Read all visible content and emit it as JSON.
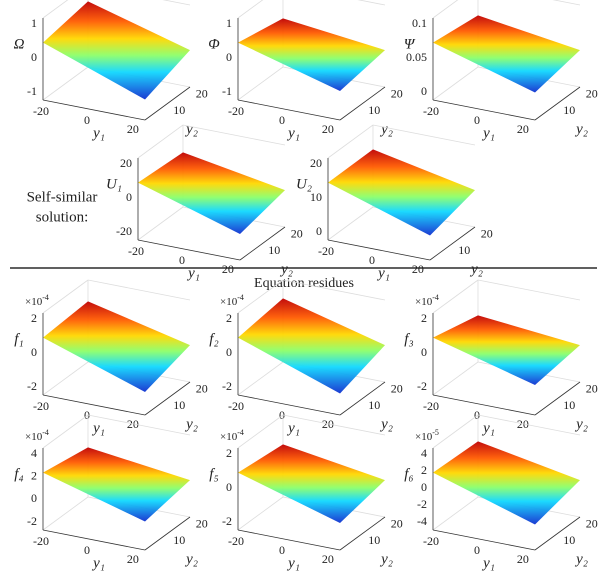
{
  "panels": [
    {
      "zlabel": "Ω",
      "zticks": [
        -1,
        0,
        1
      ],
      "y1ticks": [
        -20,
        0,
        20
      ],
      "y2ticks": [
        10,
        20
      ],
      "y1label": "y₁",
      "y2label": "y₂"
    },
    {
      "zlabel": "Φ",
      "zticks": [
        -1,
        0,
        1
      ],
      "y1ticks": [
        -20,
        0,
        20
      ],
      "y2ticks": [
        10,
        20
      ],
      "y1label": "y₁",
      "y2label": "y₂"
    },
    {
      "zlabel": "Ψ",
      "zticks": [
        0,
        0.05,
        0.1
      ],
      "y1ticks": [
        -20,
        0,
        20
      ],
      "y2ticks": [
        10,
        20
      ],
      "y1label": "y₁",
      "y2label": "y₂"
    },
    {
      "zlabel": "U₁",
      "zticks": [
        -20,
        0,
        20
      ],
      "y1ticks": [
        -20,
        0,
        20
      ],
      "y2ticks": [
        10,
        20
      ],
      "y1label": "y₁",
      "y2label": "y₂"
    },
    {
      "zlabel": "U₂",
      "zticks": [
        0,
        10,
        20
      ],
      "y1ticks": [
        -20,
        0,
        20
      ],
      "y2ticks": [
        10,
        20
      ],
      "y1label": "y₁",
      "y2label": "y₂"
    },
    {
      "zlabel": "f₁",
      "exponent": {
        "base": "×10",
        "power": "-4"
      },
      "zticks": [
        -2,
        0,
        2
      ],
      "y1ticks": [
        -20,
        0,
        20
      ],
      "y2ticks": [
        10,
        20
      ],
      "y1label": "y₁",
      "y2label": "y₂"
    },
    {
      "zlabel": "f₂",
      "exponent": {
        "base": "×10",
        "power": "-4"
      },
      "zticks": [
        -2,
        0,
        2
      ],
      "y1ticks": [
        -20,
        0,
        20
      ],
      "y2ticks": [
        10,
        20
      ],
      "y1label": "y₁",
      "y2label": "y₂"
    },
    {
      "zlabel": "f₃",
      "exponent": {
        "base": "×10",
        "power": "-4"
      },
      "zticks": [
        -2,
        0,
        2
      ],
      "y1ticks": [
        -20,
        0,
        20
      ],
      "y2ticks": [
        10,
        20
      ],
      "y1label": "y₁",
      "y2label": "y₂"
    },
    {
      "zlabel": "f₄",
      "exponent": {
        "base": "×10",
        "power": "-4"
      },
      "zticks": [
        -2,
        0,
        2,
        4
      ],
      "y1ticks": [
        -20,
        0,
        20
      ],
      "y2ticks": [
        10,
        20
      ],
      "y1label": "y₁",
      "y2label": "y₂"
    },
    {
      "zlabel": "f₅",
      "exponent": {
        "base": "×10",
        "power": "-4"
      },
      "zticks": [
        -2,
        0,
        2
      ],
      "y1ticks": [
        -20,
        0,
        20
      ],
      "y2ticks": [
        10,
        20
      ],
      "y1label": "y₁",
      "y2label": "y₂"
    },
    {
      "zlabel": "f₆",
      "exponent": {
        "base": "×10",
        "power": "-5"
      },
      "zticks": [
        -4,
        -2,
        0,
        2,
        4
      ],
      "y1ticks": [
        -20,
        0,
        20
      ],
      "y2ticks": [
        10,
        20
      ],
      "y1label": "y₁",
      "y2label": "y₂"
    }
  ],
  "side_label": [
    "Self-similar",
    "solution:"
  ],
  "section_title": "Equation residues"
}
